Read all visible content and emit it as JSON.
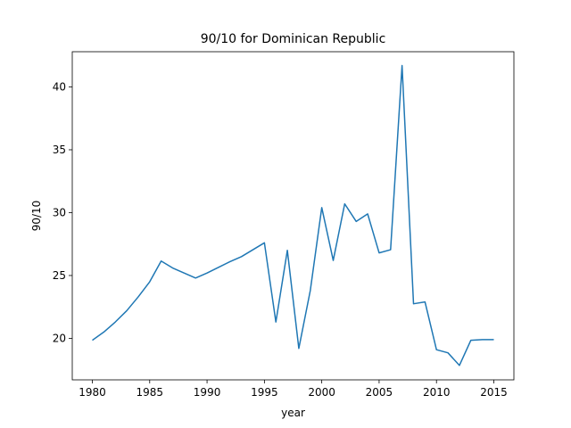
{
  "chart_data": {
    "type": "line",
    "title": "90/10 for Dominican Republic",
    "x_label": "year",
    "y_label": "90/10",
    "x": [
      1980,
      1981,
      1982,
      1983,
      1984,
      1985,
      1986,
      1987,
      1988,
      1989,
      1990,
      1991,
      1992,
      1993,
      1994,
      1995,
      1996,
      1997,
      1998,
      1999,
      2000,
      2001,
      2002,
      2003,
      2004,
      2005,
      2006,
      2007,
      2008,
      2009,
      2010,
      2011,
      2012,
      2013,
      2014,
      2015
    ],
    "series": [
      {
        "name": "90/10",
        "color": "#1f77b4",
        "values": [
          19.85,
          20.5,
          21.3,
          22.2,
          23.3,
          24.5,
          26.15,
          25.6,
          25.2,
          24.8,
          25.2,
          25.65,
          26.1,
          26.5,
          27.05,
          27.6,
          21.3,
          27.0,
          19.2,
          23.8,
          30.4,
          26.2,
          30.7,
          29.3,
          29.9,
          26.8,
          27.05,
          41.7,
          22.75,
          22.9,
          19.1,
          18.85,
          17.85,
          19.85,
          19.9,
          19.9
        ]
      }
    ],
    "xlim": [
      1978.25,
      2016.75
    ],
    "ylim": [
      16.7,
      42.8
    ],
    "xticks": [
      1980,
      1985,
      1990,
      1995,
      2000,
      2005,
      2010,
      2015
    ],
    "yticks": [
      20,
      25,
      30,
      35,
      40
    ]
  }
}
